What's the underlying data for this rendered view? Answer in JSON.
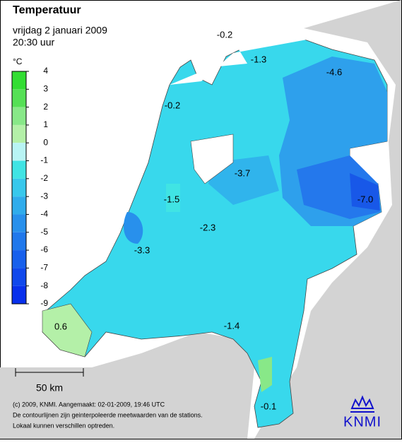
{
  "header": {
    "title": "Temperatuur",
    "date": "vrijdag 2 januari 2009",
    "time": "20:30 uur"
  },
  "legend": {
    "unit": "°C",
    "ticks": [
      4,
      3,
      2,
      1,
      0,
      -1,
      -2,
      -3,
      -4,
      -5,
      -6,
      -7,
      -8,
      -9
    ],
    "colors": [
      "#33dd33",
      "#55e055",
      "#88e888",
      "#b4f0a8",
      "#b8f4f4",
      "#40e4e4",
      "#38c8ec",
      "#30acec",
      "#2890ec",
      "#2078ec",
      "#1860ec",
      "#1048ec",
      "#0830ec"
    ]
  },
  "map_labels": [
    "-0.2",
    "-1.3",
    "-4.6",
    "-0.2",
    "-3.7",
    "-1.5",
    "-7.0",
    "-2.3",
    "-3.3",
    "-1.4",
    "0.6",
    "-0.1"
  ],
  "scale": "50 km",
  "footer": [
    "(c) 2009, KNMI. Aangemaakt: 02-01-2009, 19:46 UTC",
    "De contourlijnen zijn geinterpoleerde meetwaarden van de stations.",
    "Lokaal kunnen verschillen optreden."
  ],
  "logo": "KNMI"
}
